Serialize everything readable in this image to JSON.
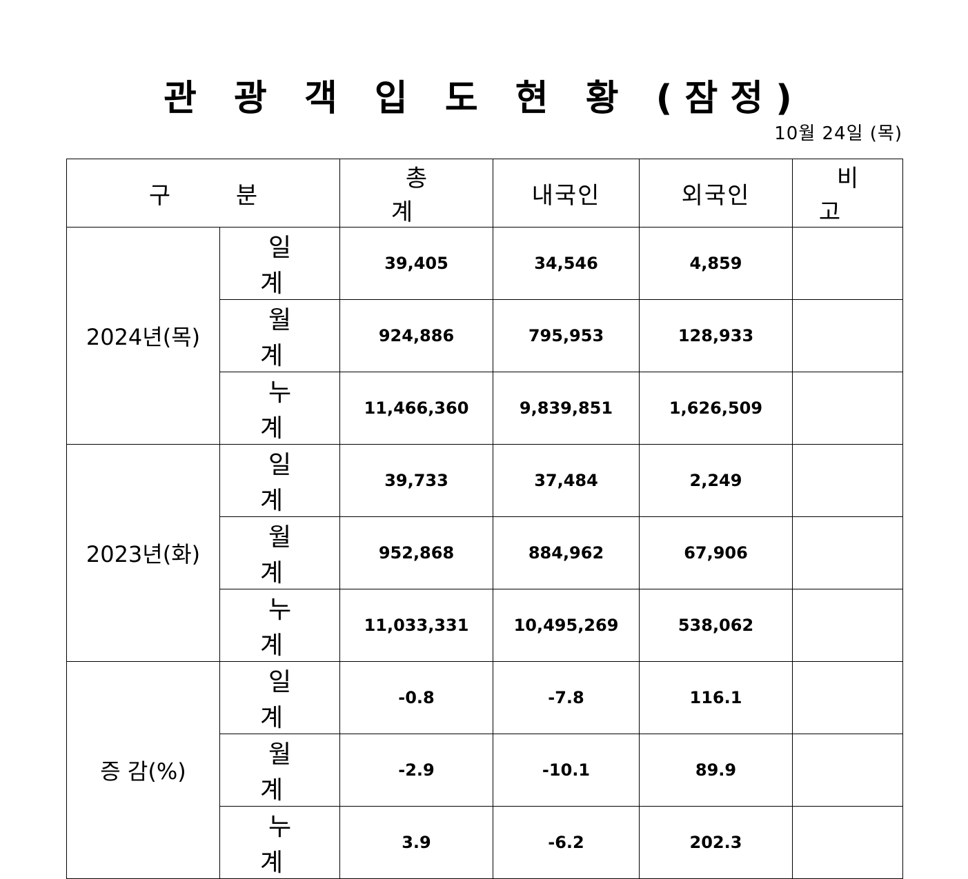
{
  "title": "관 광 객 입 도 현 황 (잠정)",
  "date": "10월  24일  (목)",
  "header": {
    "category": "구  분",
    "total": "총  계",
    "domestic": "내국인",
    "foreign": "외국인",
    "remarks": "비  고"
  },
  "groups": [
    {
      "label": "2024년(목)",
      "rows": [
        {
          "type": "일 계",
          "total": "39,405",
          "domestic": "34,546",
          "foreign": "4,859",
          "remarks": ""
        },
        {
          "type": "월 계",
          "total": "924,886",
          "domestic": "795,953",
          "foreign": "128,933",
          "remarks": ""
        },
        {
          "type": "누 계",
          "total": "11,466,360",
          "domestic": "9,839,851",
          "foreign": "1,626,509",
          "remarks": ""
        }
      ]
    },
    {
      "label": "2023년(화)",
      "rows": [
        {
          "type": "일 계",
          "total": "39,733",
          "domestic": "37,484",
          "foreign": "2,249",
          "remarks": ""
        },
        {
          "type": "월 계",
          "total": "952,868",
          "domestic": "884,962",
          "foreign": "67,906",
          "remarks": ""
        },
        {
          "type": "누 계",
          "total": "11,033,331",
          "domestic": "10,495,269",
          "foreign": "538,062",
          "remarks": ""
        }
      ]
    },
    {
      "label": "증 감(%)",
      "rows": [
        {
          "type": "일 계",
          "total": "-0.8",
          "domestic": "-7.8",
          "foreign": "116.1",
          "remarks": ""
        },
        {
          "type": "월 계",
          "total": "-2.9",
          "domestic": "-10.1",
          "foreign": "89.9",
          "remarks": ""
        },
        {
          "type": "누 계",
          "total": "3.9",
          "domestic": "-6.2",
          "foreign": "202.3",
          "remarks": ""
        }
      ]
    }
  ]
}
